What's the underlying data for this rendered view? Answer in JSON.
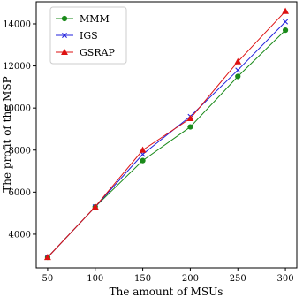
{
  "chart_data": {
    "type": "line",
    "x": [
      50,
      100,
      150,
      200,
      250,
      300
    ],
    "series": [
      {
        "name": "MMM",
        "values": [
          2900,
          5300,
          7500,
          9100,
          11500,
          13700
        ],
        "color": "#1a8a1a",
        "marker": "circle"
      },
      {
        "name": "IGS",
        "values": [
          2900,
          5300,
          7800,
          9600,
          11800,
          14100
        ],
        "color": "#2222dd",
        "marker": "x"
      },
      {
        "name": "GSRAP",
        "values": [
          2900,
          5300,
          8000,
          9500,
          12200,
          14600
        ],
        "color": "#dd1111",
        "marker": "triangle"
      }
    ],
    "xlabel": "The amount of MSUs",
    "ylabel": "The profit of the MSP",
    "xticks": [
      50,
      100,
      150,
      200,
      250,
      300
    ],
    "yticks": [
      4000,
      6000,
      8000,
      10000,
      12000,
      14000
    ],
    "xlim": [
      38,
      312
    ],
    "ylim": [
      2400,
      15050
    ],
    "legend_position": "top-left",
    "grid": false
  }
}
